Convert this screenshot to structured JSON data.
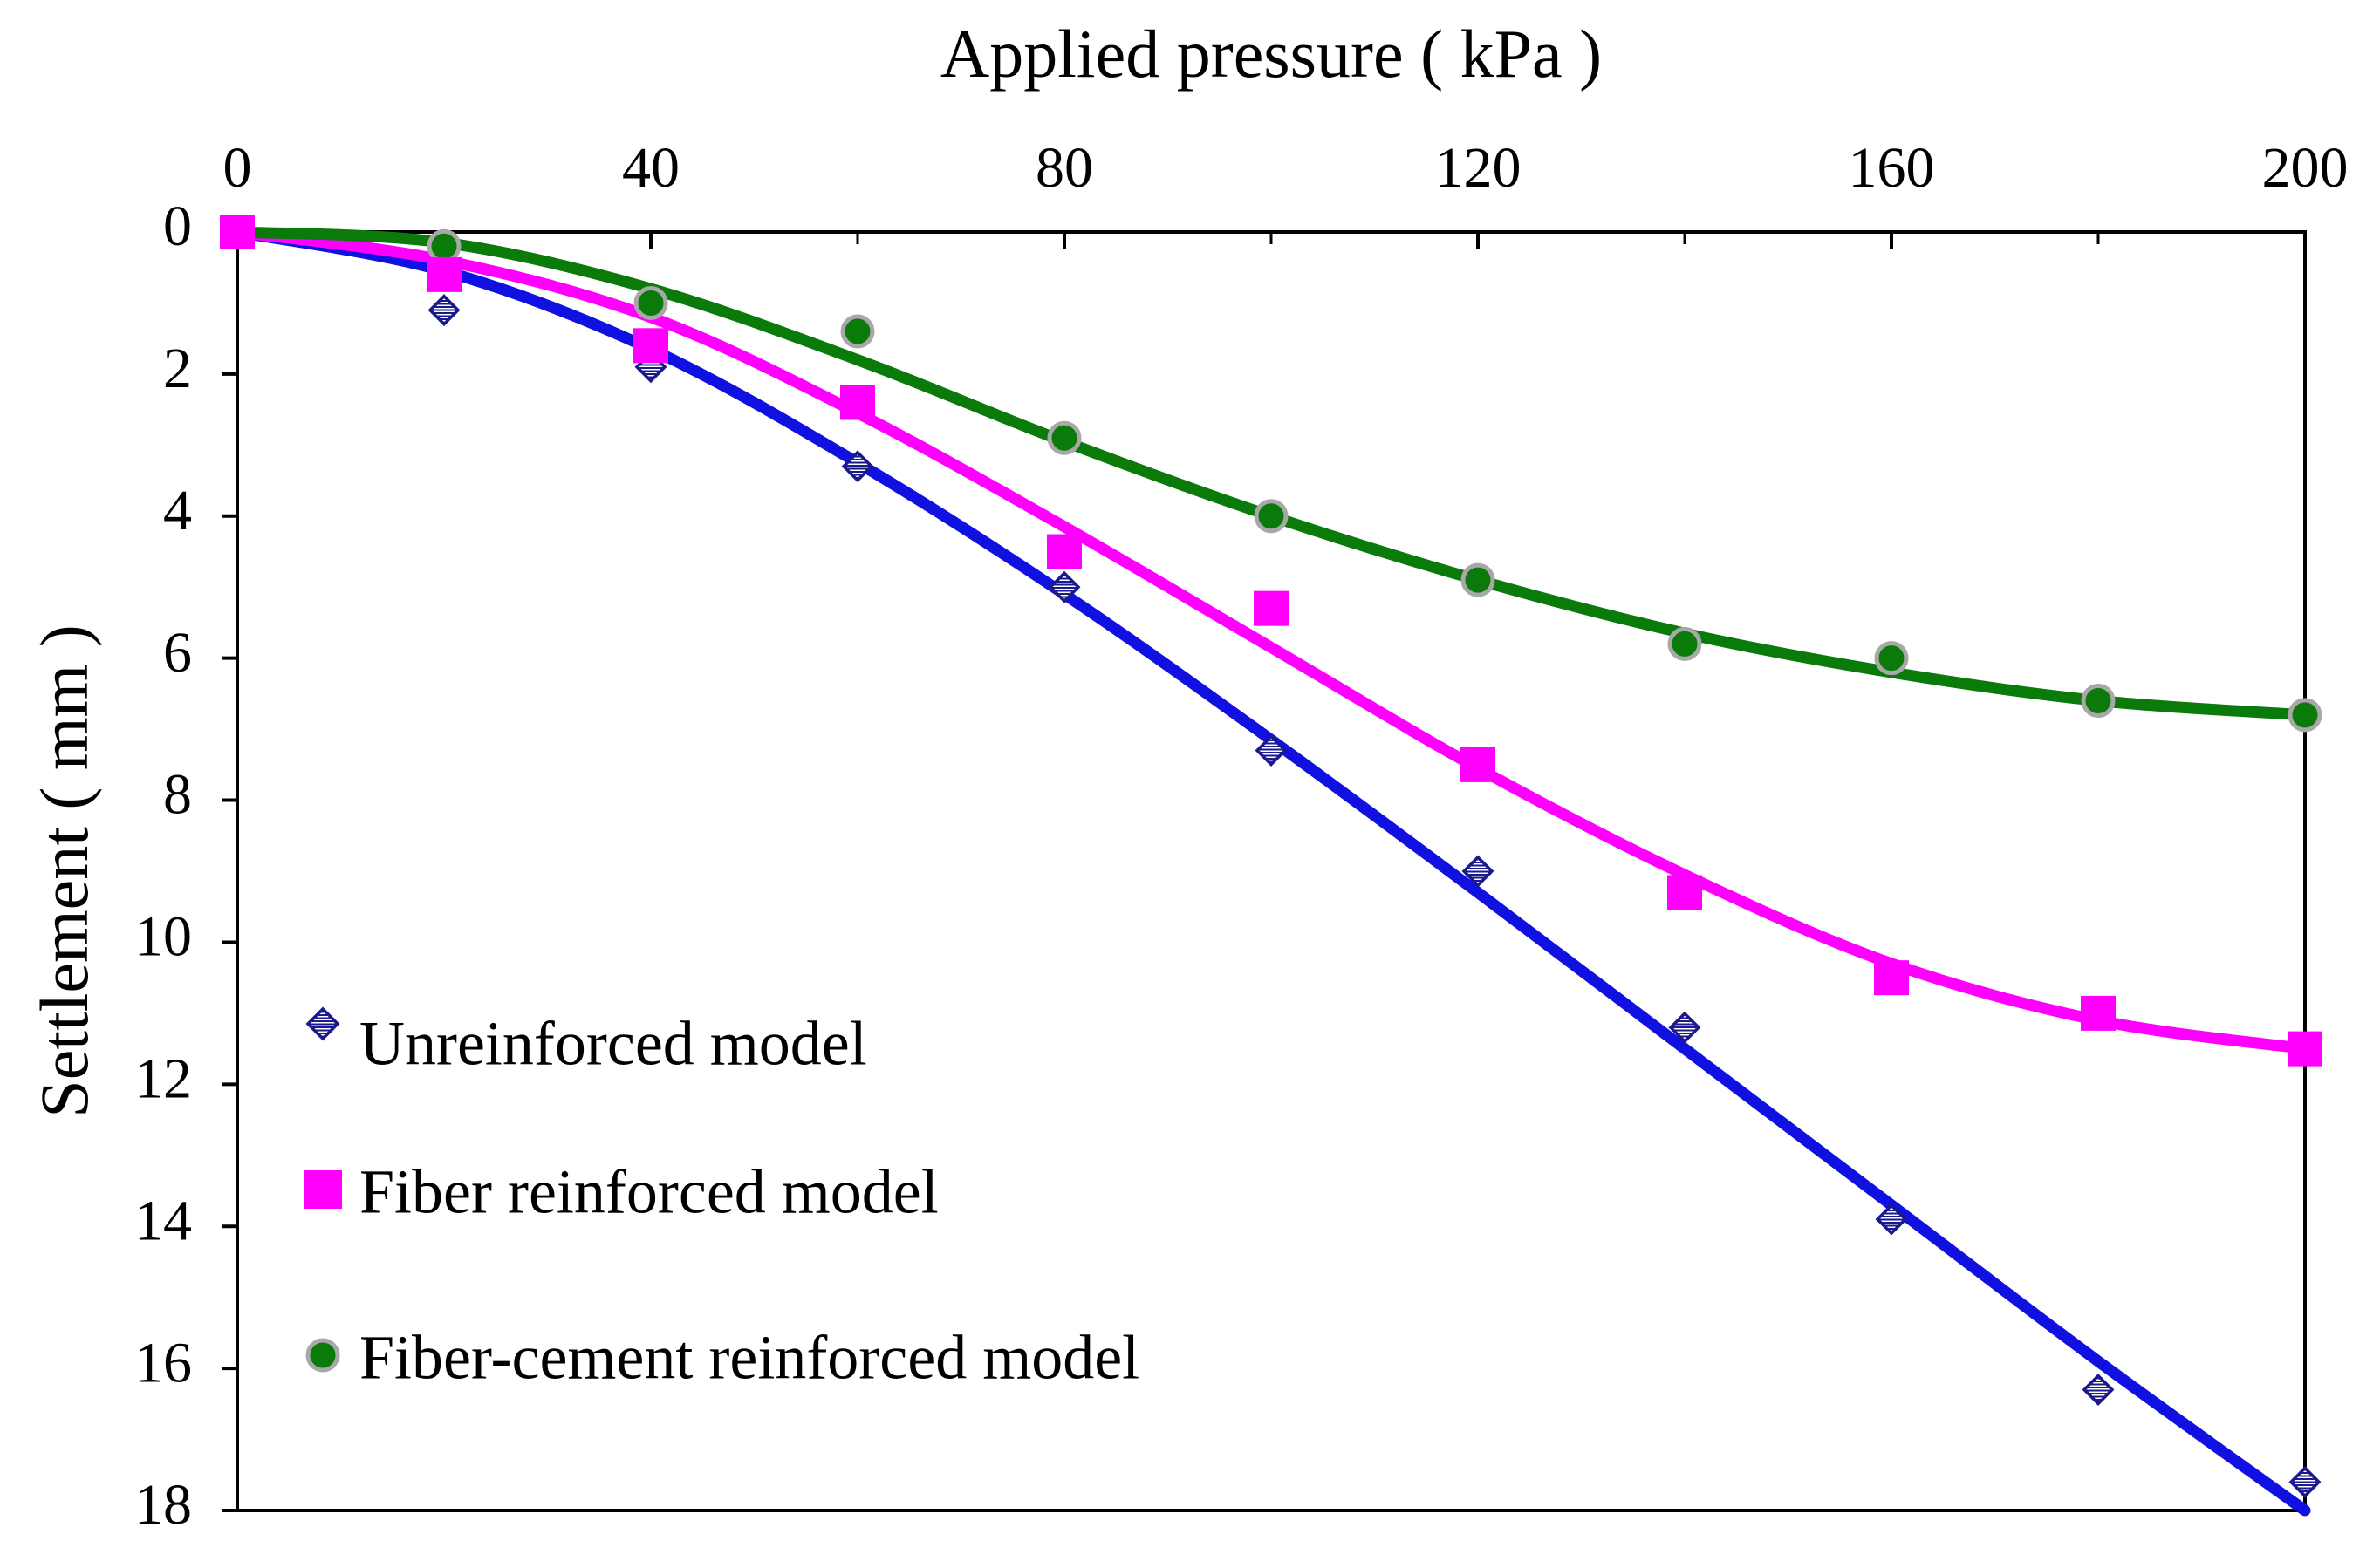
{
  "chart_data": {
    "type": "scatter",
    "title": "",
    "xlabel": "Applied pressure ( kPa )",
    "ylabel": "Settlement ( mm )",
    "xlim": [
      0,
      200
    ],
    "ylim": [
      0,
      18
    ],
    "y_inverted": true,
    "x_axis_position": "top",
    "x_ticks": [
      0,
      40,
      80,
      120,
      160,
      200
    ],
    "x_tick_labels": [
      "0",
      "40",
      "80",
      "120",
      "160",
      "200"
    ],
    "x_minor_ticks": [
      20,
      60,
      100,
      140,
      180
    ],
    "y_ticks": [
      0,
      2,
      4,
      6,
      8,
      10,
      12,
      14,
      16,
      18
    ],
    "y_tick_labels": [
      "0",
      "2",
      "4",
      "6",
      "8",
      "10",
      "12",
      "14",
      "16",
      "18"
    ],
    "grid": false,
    "legend_position": "bottom-left",
    "x": [
      0,
      20,
      40,
      60,
      80,
      100,
      120,
      140,
      160,
      180,
      200
    ],
    "series": [
      {
        "name": "Unreinforced model",
        "marker": "diamond",
        "color": "#1a1a8c",
        "trend_color": "#1010e0",
        "values": [
          0,
          1.1,
          1.9,
          3.3,
          5.0,
          7.3,
          9.0,
          11.2,
          13.9,
          16.3,
          17.6
        ],
        "trend": [
          0,
          0.55,
          1.65,
          3.25,
          5.1,
          7.15,
          9.3,
          11.5,
          13.7,
          15.9,
          18.0
        ]
      },
      {
        "name": "Fiber reinforced model",
        "marker": "square",
        "color": "#ff00ff",
        "trend_color": "#ff00ff",
        "values": [
          0,
          0.6,
          1.6,
          2.4,
          4.5,
          5.3,
          7.5,
          9.3,
          10.5,
          11.0,
          11.5
        ],
        "trend": [
          0,
          0.4,
          1.2,
          2.55,
          4.15,
          5.85,
          7.55,
          9.05,
          10.3,
          11.1,
          11.5
        ]
      },
      {
        "name": "Fiber-cement reinforced model",
        "marker": "circle",
        "color": "#0a7a0a",
        "trend_color": "#0a7a0a",
        "values": [
          0,
          0.2,
          1.0,
          1.4,
          2.9,
          4.0,
          4.9,
          5.8,
          6.0,
          6.6,
          6.8
        ],
        "trend": [
          0,
          0.15,
          0.8,
          1.8,
          2.95,
          4.0,
          4.9,
          5.65,
          6.2,
          6.6,
          6.8
        ]
      }
    ]
  }
}
